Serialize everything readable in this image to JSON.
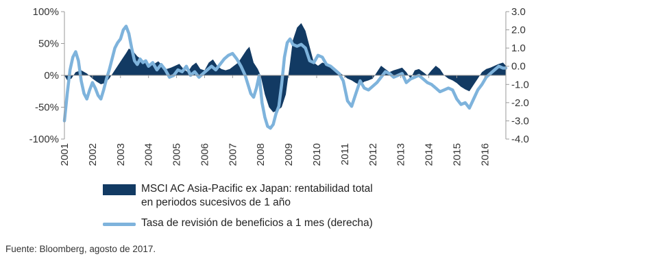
{
  "chart_data": {
    "type": "area+line",
    "years": [
      "2001",
      "2002",
      "2003",
      "2004",
      "2005",
      "2006",
      "2007",
      "2008",
      "2009",
      "2010",
      "2011",
      "2012",
      "2013",
      "2014",
      "2015",
      "2016"
    ],
    "left_axis": {
      "ticks": [
        "100%",
        "50%",
        "0%",
        "-50%",
        "-100%"
      ],
      "tick_values": [
        100,
        50,
        0,
        -50,
        -100
      ],
      "ylim": [
        -100,
        100
      ]
    },
    "right_axis": {
      "ticks": [
        "3.0",
        "2.0",
        "1.0",
        "0.0",
        "-1.0",
        "-2.0",
        "-3.0",
        "-4.0"
      ],
      "tick_values": [
        3,
        2,
        1,
        0,
        -1,
        -2,
        -3,
        -4
      ],
      "ylim": [
        -4,
        3
      ]
    },
    "xlim": [
      2001.0,
      2016.75
    ],
    "series": [
      {
        "name": "MSCI AC Asia-Pacific ex Japan: rentabilidad total en periodos sucesivos de 1 año",
        "axis": "left",
        "style": "area",
        "color": "#123a63",
        "x": [
          2001.0,
          2001.1,
          2001.25,
          2001.4,
          2001.6,
          2001.8,
          2002.0,
          2002.15,
          2002.3,
          2002.45,
          2002.6,
          2002.75,
          2002.9,
          2003.05,
          2003.2,
          2003.3,
          2003.45,
          2003.6,
          2003.75,
          2003.9,
          2004.05,
          2004.2,
          2004.35,
          2004.5,
          2004.65,
          2004.8,
          2004.95,
          2005.1,
          2005.25,
          2005.4,
          2005.55,
          2005.7,
          2005.85,
          2006.0,
          2006.15,
          2006.3,
          2006.45,
          2006.6,
          2006.75,
          2006.9,
          2007.05,
          2007.2,
          2007.35,
          2007.5,
          2007.6,
          2007.75,
          2007.9,
          2008.0,
          2008.15,
          2008.3,
          2008.45,
          2008.6,
          2008.75,
          2008.9,
          2009.05,
          2009.15,
          2009.3,
          2009.45,
          2009.6,
          2009.75,
          2009.9,
          2010.05,
          2010.2,
          2010.35,
          2010.5,
          2010.65,
          2010.8,
          2010.95,
          2011.1,
          2011.25,
          2011.4,
          2011.55,
          2011.7,
          2011.85,
          2012.0,
          2012.15,
          2012.3,
          2012.45,
          2012.6,
          2012.75,
          2012.9,
          2013.05,
          2013.2,
          2013.35,
          2013.5,
          2013.65,
          2013.8,
          2013.95,
          2014.1,
          2014.25,
          2014.4,
          2014.55,
          2014.7,
          2014.85,
          2015.0,
          2015.15,
          2015.3,
          2015.45,
          2015.6,
          2015.75,
          2015.9,
          2016.05,
          2016.2,
          2016.35,
          2016.5,
          2016.65,
          2016.75
        ],
        "values": [
          0,
          -8,
          -5,
          5,
          8,
          3,
          -5,
          -10,
          -14,
          -12,
          -5,
          5,
          15,
          25,
          35,
          42,
          38,
          30,
          25,
          20,
          15,
          18,
          22,
          15,
          10,
          12,
          15,
          18,
          10,
          5,
          15,
          20,
          10,
          8,
          20,
          25,
          15,
          10,
          8,
          10,
          15,
          20,
          30,
          40,
          45,
          20,
          10,
          0,
          -30,
          -50,
          -58,
          -55,
          -50,
          -30,
          20,
          55,
          75,
          82,
          70,
          45,
          20,
          15,
          20,
          18,
          15,
          10,
          5,
          0,
          -5,
          -8,
          -12,
          -15,
          -10,
          -8,
          -5,
          5,
          15,
          10,
          5,
          8,
          10,
          12,
          5,
          -5,
          8,
          10,
          5,
          0,
          8,
          15,
          10,
          0,
          -5,
          -8,
          -12,
          -18,
          -22,
          -25,
          -15,
          -5,
          5,
          10,
          12,
          15,
          18,
          20,
          15
        ]
      },
      {
        "name": "Tasa de revisión de beneficios a 1 mes (derecha)",
        "axis": "right",
        "style": "line",
        "color": "#7eb3dc",
        "x": [
          2001.0,
          2001.1,
          2001.2,
          2001.3,
          2001.4,
          2001.5,
          2001.6,
          2001.7,
          2001.8,
          2001.9,
          2002.0,
          2002.1,
          2002.2,
          2002.3,
          2002.4,
          2002.5,
          2002.6,
          2002.7,
          2002.8,
          2002.9,
          2003.0,
          2003.1,
          2003.2,
          2003.3,
          2003.4,
          2003.5,
          2003.6,
          2003.7,
          2003.8,
          2003.9,
          2004.0,
          2004.15,
          2004.3,
          2004.45,
          2004.6,
          2004.75,
          2004.9,
          2005.05,
          2005.2,
          2005.35,
          2005.5,
          2005.65,
          2005.8,
          2005.95,
          2006.1,
          2006.25,
          2006.4,
          2006.55,
          2006.7,
          2006.85,
          2007.0,
          2007.15,
          2007.3,
          2007.45,
          2007.55,
          2007.65,
          2007.75,
          2007.85,
          2007.95,
          2008.05,
          2008.15,
          2008.25,
          2008.35,
          2008.45,
          2008.55,
          2008.65,
          2008.75,
          2008.85,
          2008.95,
          2009.05,
          2009.15,
          2009.3,
          2009.45,
          2009.6,
          2009.75,
          2009.9,
          2010.05,
          2010.2,
          2010.35,
          2010.5,
          2010.65,
          2010.8,
          2010.95,
          2011.1,
          2011.25,
          2011.4,
          2011.55,
          2011.7,
          2011.85,
          2012.0,
          2012.15,
          2012.3,
          2012.45,
          2012.6,
          2012.75,
          2012.9,
          2013.05,
          2013.2,
          2013.35,
          2013.5,
          2013.65,
          2013.8,
          2013.95,
          2014.1,
          2014.25,
          2014.4,
          2014.55,
          2014.7,
          2014.85,
          2015.0,
          2015.15,
          2015.3,
          2015.45,
          2015.6,
          2015.75,
          2015.9,
          2016.05,
          2016.2,
          2016.35,
          2016.5,
          2016.65,
          2016.75
        ],
        "values": [
          -3.0,
          -1.5,
          -0.2,
          0.5,
          0.8,
          0.3,
          -0.8,
          -1.5,
          -1.8,
          -1.3,
          -0.9,
          -1.2,
          -1.6,
          -1.8,
          -1.3,
          -0.7,
          -0.2,
          0.4,
          1.0,
          1.3,
          1.5,
          2.0,
          2.2,
          1.8,
          1.0,
          0.3,
          0.1,
          0.4,
          0.2,
          0.3,
          0.0,
          0.2,
          -0.2,
          0.1,
          -0.2,
          -0.6,
          -0.5,
          -0.2,
          -0.3,
          0.0,
          -0.5,
          -0.3,
          -0.6,
          -0.4,
          -0.2,
          0.0,
          -0.2,
          0.1,
          0.4,
          0.6,
          0.7,
          0.4,
          0.0,
          -0.5,
          -1.0,
          -1.5,
          -1.7,
          -1.2,
          -0.5,
          -2.0,
          -2.8,
          -3.3,
          -3.4,
          -3.2,
          -2.6,
          -2.2,
          -1.0,
          0.5,
          1.3,
          1.5,
          1.2,
          1.1,
          1.2,
          1.0,
          0.3,
          0.2,
          0.6,
          0.5,
          0.1,
          0.0,
          -0.2,
          -0.4,
          -0.8,
          -1.9,
          -2.2,
          -1.5,
          -0.8,
          -1.2,
          -1.3,
          -1.1,
          -0.9,
          -0.6,
          -0.3,
          -0.4,
          -0.6,
          -0.5,
          -0.4,
          -0.9,
          -0.7,
          -0.6,
          -0.5,
          -0.7,
          -0.9,
          -1.0,
          -1.2,
          -1.4,
          -1.3,
          -1.2,
          -1.3,
          -1.8,
          -2.1,
          -2.0,
          -2.3,
          -1.8,
          -1.3,
          -1.0,
          -0.6,
          -0.4,
          -0.2,
          0.0,
          -0.1,
          -0.1
        ]
      }
    ]
  },
  "legend": {
    "area_label_line1": "MSCI AC Asia-Pacific ex Japan: rentabilidad total",
    "area_label_line2": "en periodos sucesivos de 1 año",
    "line_label": "Tasa de revisión de beneficios a 1 mes (derecha)"
  },
  "source": "Fuente: Bloomberg, agosto de 2017."
}
